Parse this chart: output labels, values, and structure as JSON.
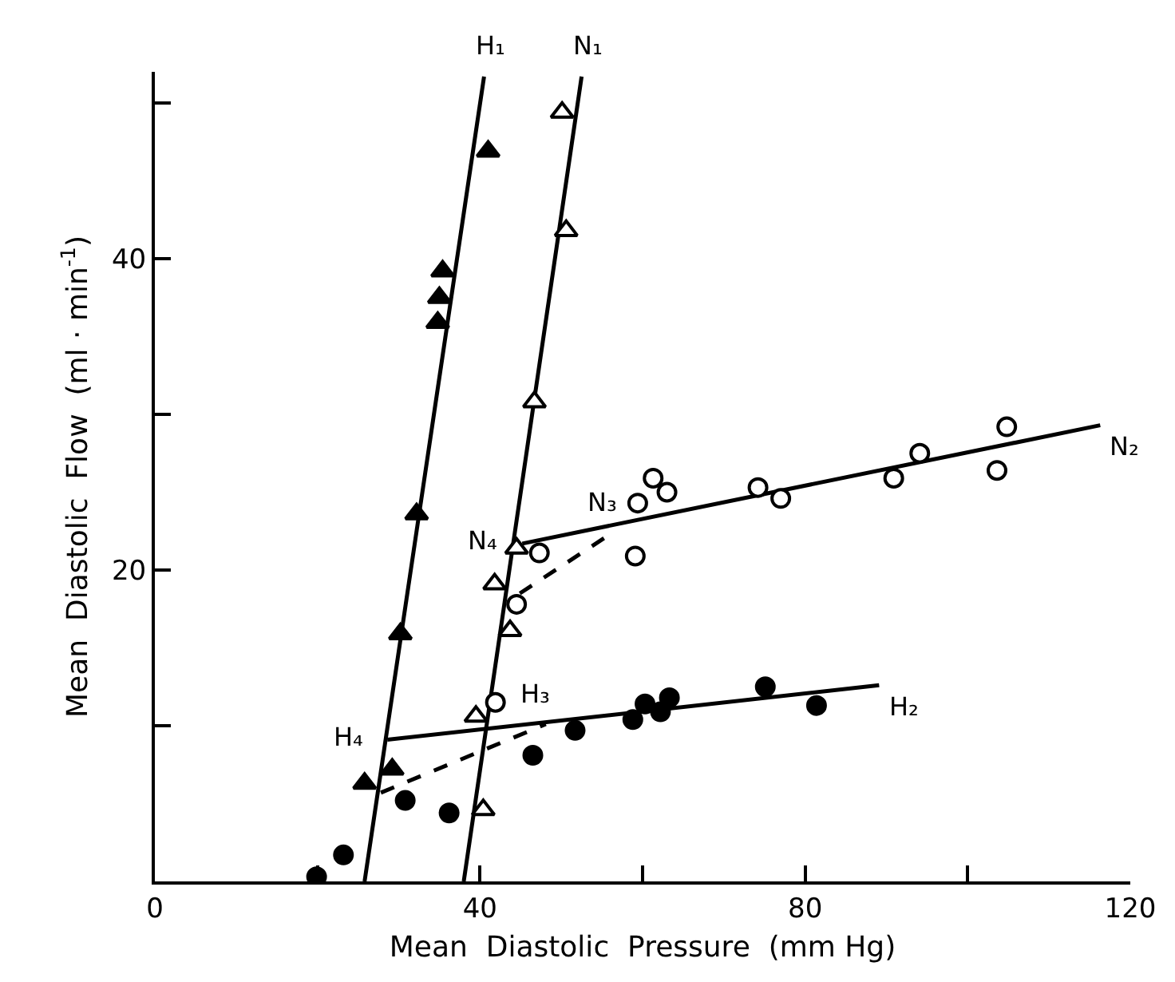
{
  "chart_data": {
    "type": "scatter",
    "xlabel": "Mean  Diastolic  Pressure  (mm Hg)",
    "ylabel": "Mean  Diastolic  Flow  (ml · min$^{-1}$)",
    "xlim": [
      0,
      120
    ],
    "ylim": [
      0,
      52
    ],
    "xticks": [
      0,
      {
        "value": 20,
        "label": null
      },
      40,
      {
        "value": 60,
        "label": null
      },
      80,
      {
        "value": 100,
        "label": null
      },
      120
    ],
    "yticks": [
      {
        "value": 0,
        "label": null
      },
      {
        "value": 10,
        "label": null
      },
      20,
      {
        "value": 30,
        "label": null
      },
      40,
      {
        "value": 50,
        "label": null
      }
    ],
    "series": [
      {
        "marker": "triangle",
        "color": "#000000",
        "x": [
          41.0,
          35.4,
          35.0,
          34.8,
          32.2,
          30.2,
          29.2,
          25.8
        ],
        "values": [
          46.9,
          39.2,
          37.5,
          35.9,
          23.6,
          15.9,
          7.2,
          6.3
        ]
      },
      {
        "marker": "triangle",
        "color": "#ffffff",
        "x": [
          50.1,
          50.6,
          46.7,
          44.5,
          41.8,
          43.7,
          39.5,
          40.4
        ],
        "values": [
          49.4,
          41.8,
          30.8,
          21.4,
          19.1,
          16.1,
          10.6,
          4.6
        ]
      },
      {
        "marker": "circle",
        "color": "#ffffff",
        "x": [
          47.3,
          44.5,
          41.9,
          59.1,
          59.4,
          61.3,
          63.0,
          74.2,
          77.0,
          90.9,
          94.1,
          103.6,
          104.8
        ],
        "values": [
          21.1,
          17.8,
          11.5,
          20.9,
          24.3,
          25.9,
          25.0,
          25.3,
          24.6,
          25.9,
          27.5,
          26.4,
          29.2
        ]
      },
      {
        "marker": "circle",
        "color": "#000000",
        "x": [
          19.9,
          23.2,
          30.8,
          36.2,
          46.5,
          51.7,
          58.8,
          60.3,
          62.2,
          63.3,
          75.1,
          81.4
        ],
        "values": [
          0.3,
          1.7,
          5.2,
          4.4,
          8.1,
          9.7,
          10.4,
          11.4,
          10.9,
          11.8,
          12.5,
          11.3
        ]
      },
      {
        "type": "line",
        "line_style": "solid",
        "color": "#000000",
        "x": [
          25.8,
          40.5
        ],
        "values": [
          0,
          51.7
        ]
      },
      {
        "type": "line",
        "line_style": "solid",
        "color": "#000000",
        "x": [
          38.0,
          52.5
        ],
        "values": [
          0,
          51.7
        ]
      },
      {
        "type": "line",
        "line_style": "solid",
        "color": "#000000",
        "x": [
          45.2,
          116.3
        ],
        "values": [
          21.7,
          29.3
        ]
      },
      {
        "type": "line",
        "line_style": "solid",
        "color": "#000000",
        "x": [
          28.6,
          89.1
        ],
        "values": [
          9.1,
          12.6
        ]
      },
      {
        "type": "line",
        "line_style": "dashed",
        "color": "#000000",
        "x": [
          44.9,
          56.3
        ],
        "values": [
          18.5,
          22.4
        ]
      },
      {
        "type": "line",
        "line_style": "dashed",
        "color": "#000000",
        "x": [
          27.8,
          48.1
        ],
        "values": [
          5.7,
          10.1
        ]
      }
    ],
    "annotations": [
      {
        "text": "H₁",
        "x": 40.5,
        "y": 51.7
      },
      {
        "text": "N₁",
        "x": 52.5,
        "y": 51.7
      },
      {
        "text": "N₂",
        "x": 116.3,
        "y": 29.3
      },
      {
        "text": "N₃",
        "x": 56.3,
        "y": 22.4
      },
      {
        "text": "N₄",
        "x": 45.2,
        "y": 21.7
      },
      {
        "text": "H₂",
        "x": 89.1,
        "y": 12.6
      },
      {
        "text": "H₃",
        "x": 48.1,
        "y": 10.1
      },
      {
        "text": "H₄",
        "x": 28.6,
        "y": 9.1
      }
    ]
  }
}
